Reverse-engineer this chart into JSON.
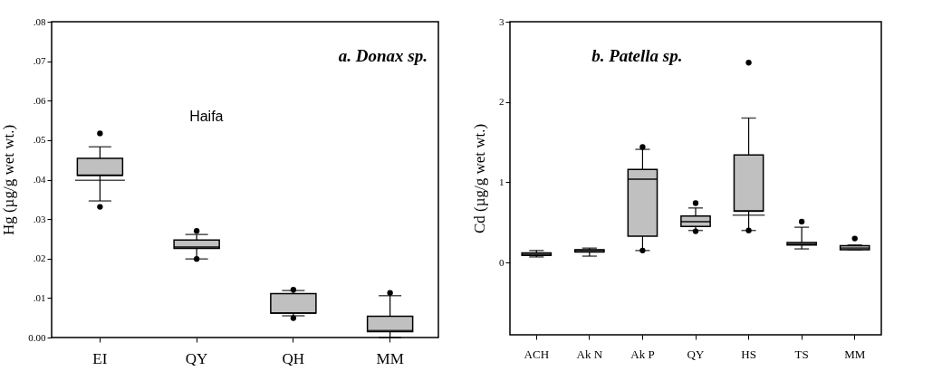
{
  "chart_data": [
    {
      "type": "box",
      "title": "a. Donax sp.",
      "ylabel": "Hg (µg/g wet wt.)",
      "categories": [
        "EI",
        "QY",
        "QH",
        "MM"
      ],
      "ylim": [
        0,
        0.08
      ],
      "yticks": [
        {
          "value": 0,
          "label": "0.00"
        },
        {
          "value": 0.01,
          "label": ".01"
        },
        {
          "value": 0.02,
          "label": ".02"
        },
        {
          "value": 0.03,
          "label": ".03"
        },
        {
          "value": 0.04,
          "label": ".04"
        },
        {
          "value": 0.05,
          "label": ".05"
        },
        {
          "value": 0.06,
          "label": ".06"
        },
        {
          "value": 0.07,
          "label": ".07"
        },
        {
          "value": 0.08,
          "label": ".08"
        }
      ],
      "annotations": [
        "Haifa"
      ],
      "series": [
        {
          "color": "#c0c0c0",
          "boxes": [
            {
              "low": 0.0346,
              "q1": 0.0411,
              "median": 0.0411,
              "q3": 0.0454,
              "high": 0.0483,
              "mean": 0.0398,
              "outliers": [
                0.0517,
                0.0331
              ]
            },
            {
              "low": 0.0199,
              "q1": 0.0226,
              "median": 0.0229,
              "q3": 0.0247,
              "high": 0.0261,
              "outliers": [
                0.027,
                0.0199
              ]
            },
            {
              "low": 0.0055,
              "q1": 0.0062,
              "median": 0.0062,
              "q3": 0.0111,
              "high": 0.0119,
              "outliers": [
                0.0121,
                0.0049
              ]
            },
            {
              "low": 0.0,
              "q1": 0.0015,
              "median": 0.0017,
              "q3": 0.0054,
              "high": 0.0106,
              "outliers": [
                0.0113
              ]
            }
          ]
        }
      ]
    },
    {
      "type": "box",
      "title": "b. Patella sp.",
      "ylabel": "Cd (µg/g wet wt.)",
      "categories": [
        "ACH",
        "Ak N",
        "Ak P",
        "QY",
        "HS",
        "TS",
        "MM"
      ],
      "ylim": [
        -0.9,
        3
      ],
      "yticks": [
        0,
        1,
        2,
        3
      ],
      "series": [
        {
          "color": "#c0c0c0",
          "boxes": [
            {
              "low": 0.07,
              "q1": 0.09,
              "median": 0.1,
              "q3": 0.12,
              "high": 0.15
            },
            {
              "low": 0.08,
              "q1": 0.13,
              "median": 0.15,
              "q3": 0.16,
              "high": 0.18
            },
            {
              "low": 0.15,
              "q1": 0.33,
              "median": 1.04,
              "q3": 1.16,
              "high": 1.41,
              "outliers": [
                1.44,
                0.15
              ]
            },
            {
              "low": 0.4,
              "q1": 0.45,
              "median": 0.51,
              "q3": 0.58,
              "high": 0.68,
              "outliers": [
                0.74,
                0.39
              ]
            },
            {
              "low": 0.4,
              "q1": 0.64,
              "median": 0.64,
              "q3": 1.34,
              "high": 1.8,
              "mean": 0.59,
              "outliers": [
                2.49,
                0.4
              ]
            },
            {
              "low": 0.17,
              "q1": 0.22,
              "median": 0.23,
              "q3": 0.25,
              "high": 0.44,
              "outliers": [
                0.51
              ]
            },
            {
              "low": 0.16,
              "q1": 0.16,
              "median": 0.18,
              "q3": 0.21,
              "high": 0.22,
              "outliers": [
                0.3
              ]
            }
          ]
        }
      ]
    }
  ]
}
